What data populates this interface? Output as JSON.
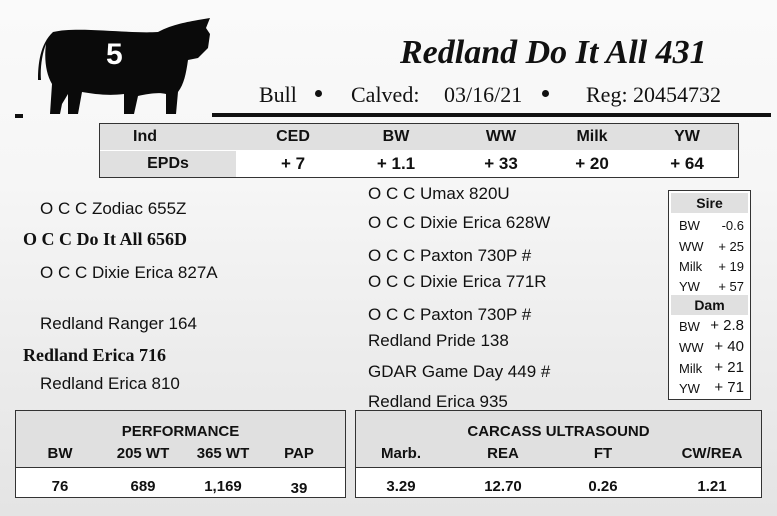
{
  "lot_number": "5",
  "header": {
    "name": "Redland Do It All 431",
    "sex": "Bull",
    "calved_label": "Calved:",
    "calved": "03/16/21",
    "reg": "Reg: 20454732"
  },
  "epds": {
    "row_label_1": "Ind",
    "row_label_2": "EPDs",
    "columns": [
      "CED",
      "BW",
      "WW",
      "Milk",
      "YW"
    ],
    "values": [
      "+ 7",
      "+ 1.1",
      "+ 33",
      "+ 20",
      "+ 64"
    ]
  },
  "pedigree": {
    "sire": "O C C Do It All 656D",
    "sire_sire": "O C C Zodiac 655Z",
    "sire_dam": "O C C Dixie Erica 827A",
    "dam": "Redland Erica 716",
    "dam_sire": "Redland Ranger 164",
    "dam_dam": "Redland Erica 810",
    "ss_sire": "O C C Umax 820U",
    "ss_dam": "O C C Dixie Erica 628W",
    "sd_sire": "O C C Paxton 730P #",
    "sd_dam": "O C C Dixie Erica 771R",
    "ds_sire": "O C C Paxton 730P #",
    "ds_dam": "Redland Pride 138",
    "dd_sire": "GDAR Game Day 449 #",
    "dd_dam": "Redland Erica 935"
  },
  "sire_epds": {
    "title": "Sire",
    "rows": [
      {
        "label": "BW",
        "value": "-0.6"
      },
      {
        "label": "WW",
        "value": "+ 25"
      },
      {
        "label": "Milk",
        "value": "+ 19"
      },
      {
        "label": "YW",
        "value": "+ 57"
      }
    ]
  },
  "dam_epds": {
    "title": "Dam",
    "rows": [
      {
        "label": "BW",
        "value": "+ 2.8"
      },
      {
        "label": "WW",
        "value": "+ 40"
      },
      {
        "label": "Milk",
        "value": "+ 21"
      },
      {
        "label": "YW",
        "value": "+ 71"
      }
    ]
  },
  "performance": {
    "title": "PERFORMANCE",
    "columns": [
      "BW",
      "205 WT",
      "365 WT",
      "PAP"
    ],
    "values": [
      "76",
      "689",
      "1,169",
      "39"
    ]
  },
  "carcass": {
    "title": "CARCASS ULTRASOUND",
    "columns": [
      "Marb.",
      "REA",
      "FT",
      "CW/REA"
    ],
    "values": [
      "3.29",
      "12.70",
      "0.26",
      "1.21"
    ]
  }
}
